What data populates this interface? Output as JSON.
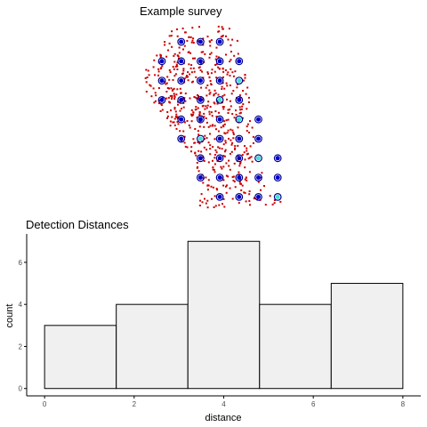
{
  "chart_data": [
    {
      "type": "scatter",
      "title": "Example survey",
      "xlabel": "",
      "ylabel": "",
      "grid": false,
      "legend": "none",
      "axes": false,
      "colors": {
        "points": "#cc0000",
        "sensor_ring": "#00008b",
        "sensor_fill": "#0000cd",
        "detector_fill": "#40e0d0"
      },
      "detector_rows": [
        {
          "y": 0,
          "x": [
            1,
            2,
            3
          ]
        },
        {
          "y": 1,
          "x": [
            0,
            1,
            2,
            3,
            4
          ]
        },
        {
          "y": 2,
          "x": [
            0,
            1,
            2,
            3,
            4
          ]
        },
        {
          "y": 3,
          "x": [
            0,
            1,
            2,
            3,
            4
          ]
        },
        {
          "y": 4,
          "x": [
            1,
            2,
            3,
            4,
            5
          ]
        },
        {
          "y": 5,
          "x": [
            1,
            2,
            3,
            4,
            5
          ]
        },
        {
          "y": 6,
          "x": [
            2,
            3,
            4,
            5,
            6
          ]
        },
        {
          "y": 7,
          "x": [
            2,
            3,
            4,
            5,
            6
          ]
        },
        {
          "y": 8,
          "x": [
            3,
            4,
            5,
            6
          ]
        }
      ],
      "highlighted_detectors": [
        [
          4,
          2
        ],
        [
          3,
          3
        ],
        [
          4,
          4
        ],
        [
          2,
          5
        ],
        [
          5,
          6
        ],
        [
          6,
          8
        ]
      ],
      "point_count": 600
    },
    {
      "type": "bar",
      "title": "Detection Distances",
      "xlabel": "distance",
      "ylabel": "count",
      "grid": false,
      "bins": [
        {
          "from": 0.0,
          "to": 1.6,
          "count": 3
        },
        {
          "from": 1.6,
          "to": 3.2,
          "count": 4
        },
        {
          "from": 3.2,
          "to": 4.8,
          "count": 7
        },
        {
          "from": 4.8,
          "to": 6.4,
          "count": 4
        },
        {
          "from": 6.4,
          "to": 8.0,
          "count": 5
        }
      ],
      "xlim": [
        -0.4,
        8.4
      ],
      "ylim": [
        -0.35,
        7.35
      ],
      "x_ticks": [
        "0",
        "2",
        "4",
        "6",
        "8"
      ],
      "y_ticks": [
        "0",
        "2",
        "4",
        "6"
      ],
      "colors": {
        "bar_fill": "#f0f0f0",
        "bar_stroke": "#000000",
        "axis": "#000000",
        "tick_text": "#4d4d4d"
      }
    }
  ]
}
